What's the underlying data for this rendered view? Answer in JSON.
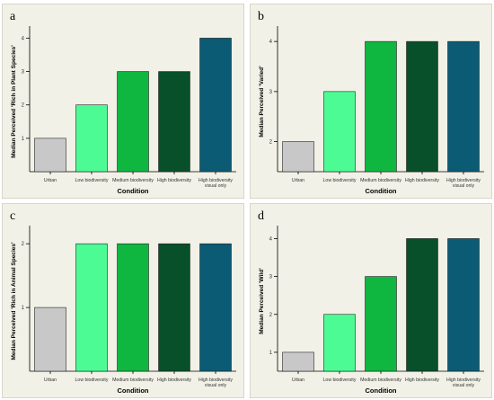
{
  "colors": {
    "Urban": "#c8c8c8",
    "Low biodiversity": "#4dfb95",
    "Medium biodiversity": "#0fb741",
    "High biodiversity": "#07502a",
    "High biodiversity visual only": "#0b5b74",
    "panel_bg": "#f2f1e7"
  },
  "chart_data": [
    {
      "type": "bar",
      "panel_label": "a",
      "ylabel": "Median Perceived 'Rich in Plant Species'",
      "xlabel": "Condition",
      "categories": [
        "Urban",
        "Low biodiversity",
        "Medium biodiversity",
        "High biodiversity",
        [
          "High biodiversity",
          "visual only"
        ]
      ],
      "values": [
        1,
        2,
        3,
        3,
        4
      ],
      "ylim": [
        0,
        4.2
      ],
      "yticks": [
        1,
        2,
        3,
        4
      ],
      "grid": false
    },
    {
      "type": "bar",
      "panel_label": "b",
      "ylabel": "Median Perceived 'Varied'",
      "xlabel": "Condition",
      "categories": [
        "Urban",
        "Low biodiversity",
        "Medium biodiversity",
        "High biodiversity",
        [
          "High biodiversity",
          "visual only"
        ]
      ],
      "values": [
        2,
        3,
        4,
        4,
        4
      ],
      "ylim": [
        1.4,
        4.2
      ],
      "yticks": [
        2,
        3,
        4
      ],
      "grid": false
    },
    {
      "type": "bar",
      "panel_label": "c",
      "ylabel": "Median Perceived 'Rich in Animal Species'",
      "xlabel": "Condition",
      "categories": [
        "Urban",
        "Low biodiversity",
        "Medium biodiversity",
        "High biodiversity",
        [
          "High biodiversity",
          "visual only"
        ]
      ],
      "values": [
        1,
        2,
        2,
        2,
        2
      ],
      "ylim": [
        0,
        2.2
      ],
      "yticks": [
        1,
        2
      ],
      "grid": false
    },
    {
      "type": "bar",
      "panel_label": "d",
      "ylabel": "Median Perceived 'Wild'",
      "xlabel": "Condition",
      "categories": [
        "Urban",
        "Low biodiversity",
        "Medium biodiversity",
        "High biodiversity",
        [
          "High biodiversity",
          "visual only"
        ]
      ],
      "values": [
        1,
        2,
        3,
        4,
        4
      ],
      "ylim": [
        0.5,
        4.2
      ],
      "yticks": [
        1,
        2,
        3,
        4
      ],
      "grid": false
    }
  ]
}
